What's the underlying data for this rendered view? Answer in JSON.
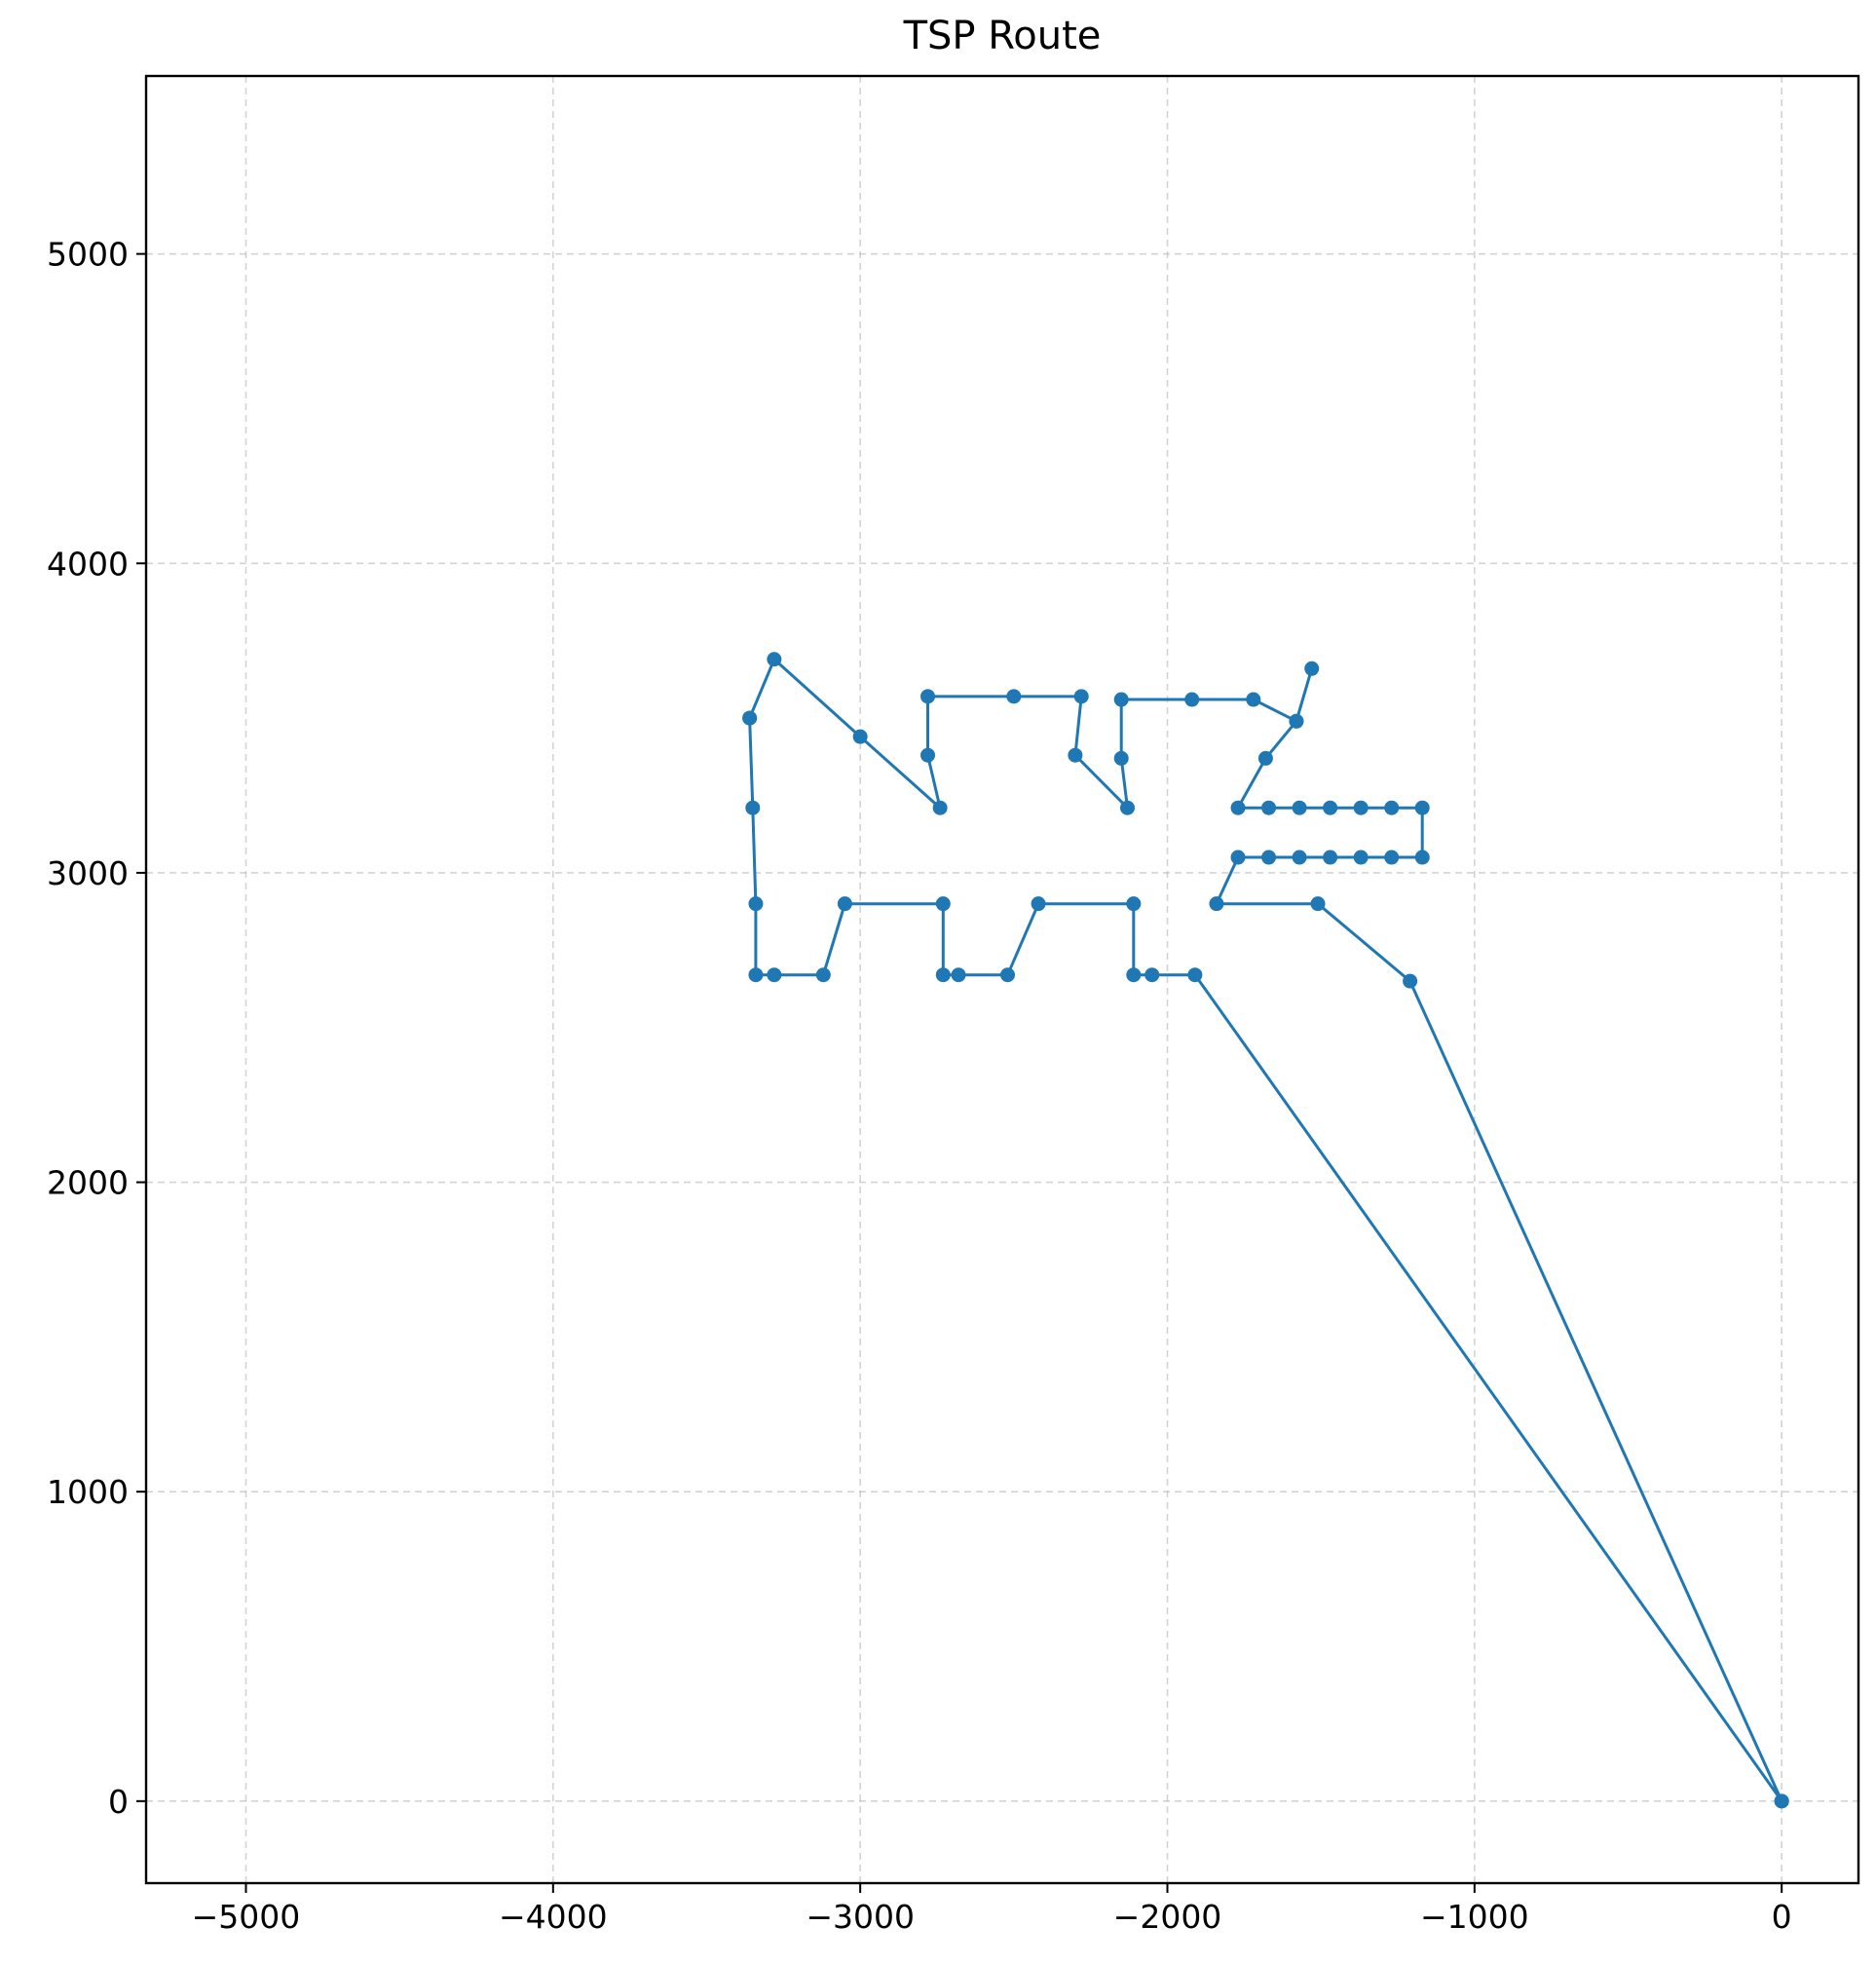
{
  "chart_data": {
    "type": "line",
    "title": "TSP Route",
    "xlabel": "",
    "ylabel": "",
    "xlim": [
      -5325,
      250
    ],
    "ylim": [
      -265,
      5575
    ],
    "x_ticks": [
      -5000,
      -4000,
      -3000,
      -2000,
      -1000,
      0
    ],
    "x_tick_labels": [
      "−5000",
      "−4000",
      "−3000",
      "−2000",
      "−1000",
      "0"
    ],
    "y_ticks": [
      0,
      1000,
      2000,
      3000,
      4000,
      5000
    ],
    "y_tick_labels": [
      "0",
      "1000",
      "2000",
      "3000",
      "4000",
      "5000"
    ],
    "grid": true,
    "legend": "none",
    "series": [
      {
        "color": "#1f77b4",
        "marker": "circle",
        "x": [
          0,
          -1910,
          -2050,
          -2110,
          -2110,
          -2420,
          -2520,
          -2680,
          -2730,
          -2730,
          -3050,
          -3120,
          -3280,
          -3340,
          -3340,
          -3350,
          -3360,
          -3360,
          -3280,
          -3000,
          -2740,
          -2780,
          -2780,
          -2500,
          -2280,
          -2300,
          -2130,
          -2150,
          -2150,
          -1920,
          -1720,
          -1580,
          -1530,
          -1580,
          -1680,
          -1770,
          -1670,
          -1570,
          -1470,
          -1370,
          -1270,
          -1170,
          -1170,
          -1270,
          -1370,
          -1470,
          -1570,
          -1670,
          -1770,
          -1840,
          -1510,
          -1210,
          0
        ],
        "y": [
          0,
          2670,
          2670,
          2670,
          2900,
          2900,
          2670,
          2670,
          2670,
          2900,
          2900,
          2670,
          2670,
          2670,
          2900,
          3210,
          3500,
          3500,
          3690,
          3440,
          3210,
          3380,
          3570,
          3570,
          3570,
          3380,
          3210,
          3370,
          3560,
          3560,
          3560,
          3490,
          3660,
          3490,
          3370,
          3210,
          3210,
          3210,
          3210,
          3210,
          3210,
          3210,
          3050,
          3050,
          3050,
          3050,
          3050,
          3050,
          3050,
          2900,
          2900,
          2650,
          0
        ]
      }
    ]
  }
}
